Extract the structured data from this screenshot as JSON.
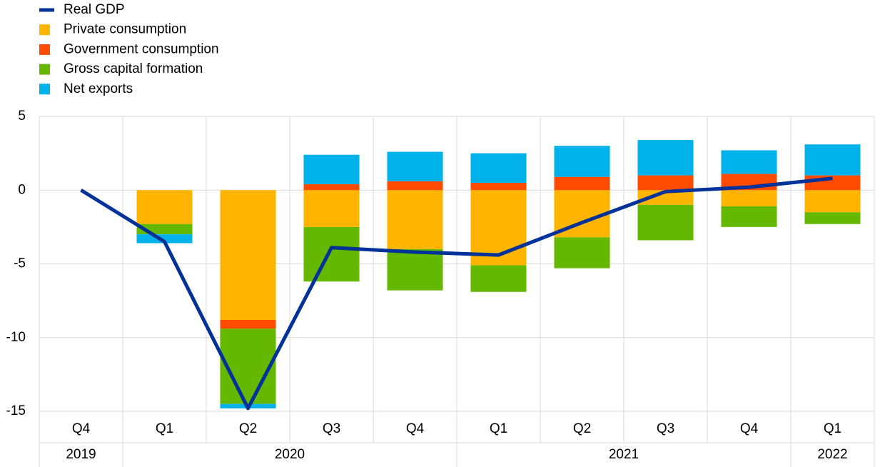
{
  "chart_data": {
    "type": "bar",
    "categories": [
      "Q4",
      "Q1",
      "Q2",
      "Q3",
      "Q4",
      "Q1",
      "Q2",
      "Q3",
      "Q4",
      "Q1"
    ],
    "year_groups": [
      {
        "label": "2019",
        "count": 1
      },
      {
        "label": "2020",
        "count": 4
      },
      {
        "label": "2021",
        "count": 4
      },
      {
        "label": "2022",
        "count": 1
      }
    ],
    "series": [
      {
        "name": "Real GDP",
        "type": "line",
        "color": "#003299",
        "values": [
          0,
          -3.5,
          -14.8,
          -3.9,
          -4.2,
          -4.4,
          -2.2,
          -0.1,
          0.2,
          0.8
        ]
      },
      {
        "name": "Private consumption",
        "color": "#ffb400",
        "values": [
          0,
          -2.3,
          -8.8,
          -2.5,
          -4.0,
          -5.1,
          -3.2,
          -1.0,
          -1.1,
          -1.5
        ]
      },
      {
        "name": "Government consumption",
        "color": "#ff4b00",
        "values": [
          0,
          0,
          -0.6,
          0.4,
          0.6,
          0.5,
          0.9,
          1.0,
          1.1,
          1.0
        ]
      },
      {
        "name": "Gross capital formation",
        "color": "#65b800",
        "values": [
          0,
          -0.7,
          -5.1,
          -3.7,
          -2.8,
          -1.8,
          -2.1,
          -2.4,
          -1.4,
          -0.8
        ]
      },
      {
        "name": "Net exports",
        "color": "#00b1ea",
        "values": [
          0,
          -0.6,
          -0.3,
          2.0,
          2.0,
          2.0,
          2.1,
          2.4,
          1.6,
          2.1
        ]
      }
    ],
    "ylim": [
      -15,
      5
    ],
    "yticks": [
      -15,
      -10,
      -5,
      0,
      5
    ],
    "grid": true
  }
}
